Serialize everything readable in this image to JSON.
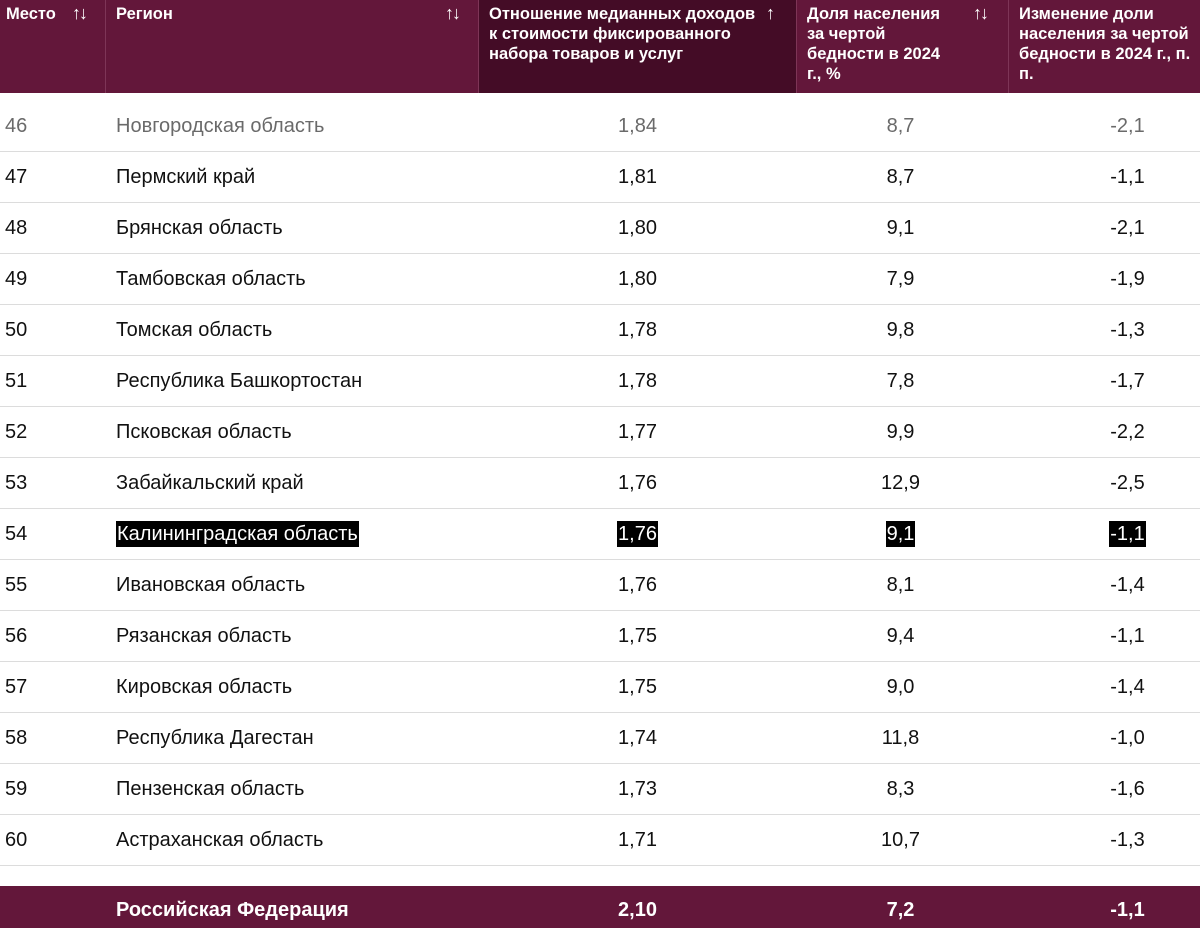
{
  "header": {
    "rank": "Место",
    "region": "Регион",
    "ratio": "Отношение медианных доходов к стоимости фиксированного набора товаров и услуг",
    "share": "Доля населения за чертой бедности в 2024 г., %",
    "change": "Изменение доли населения за чертой бедности в 2024 г., п. п.",
    "sort_both_icon": "↑↓",
    "sort_asc_icon": "↑"
  },
  "rows": [
    {
      "rank": "46",
      "region": "Новгородская область",
      "ratio": "1,84",
      "share": "8,7",
      "change": "-2,1"
    },
    {
      "rank": "47",
      "region": "Пермский край",
      "ratio": "1,81",
      "share": "8,7",
      "change": "-1,1"
    },
    {
      "rank": "48",
      "region": "Брянская область",
      "ratio": "1,80",
      "share": "9,1",
      "change": "-2,1"
    },
    {
      "rank": "49",
      "region": "Тамбовская область",
      "ratio": "1,80",
      "share": "7,9",
      "change": "-1,9"
    },
    {
      "rank": "50",
      "region": "Томская область",
      "ratio": "1,78",
      "share": "9,8",
      "change": "-1,3"
    },
    {
      "rank": "51",
      "region": "Республика Башкортостан",
      "ratio": "1,78",
      "share": "7,8",
      "change": "-1,7"
    },
    {
      "rank": "52",
      "region": "Псковская область",
      "ratio": "1,77",
      "share": "9,9",
      "change": "-2,2"
    },
    {
      "rank": "53",
      "region": "Забайкальский край",
      "ratio": "1,76",
      "share": "12,9",
      "change": "-2,5"
    },
    {
      "rank": "54",
      "region": "Калининградская область",
      "ratio": "1,76",
      "share": "9,1",
      "change": "-1,1"
    },
    {
      "rank": "55",
      "region": "Ивановская область",
      "ratio": "1,76",
      "share": "8,1",
      "change": "-1,4"
    },
    {
      "rank": "56",
      "region": "Рязанская область",
      "ratio": "1,75",
      "share": "9,4",
      "change": "-1,1"
    },
    {
      "rank": "57",
      "region": "Кировская область",
      "ratio": "1,75",
      "share": "9,0",
      "change": "-1,4"
    },
    {
      "rank": "58",
      "region": "Республика Дагестан",
      "ratio": "1,74",
      "share": "11,8",
      "change": "-1,0"
    },
    {
      "rank": "59",
      "region": "Пензенская область",
      "ratio": "1,73",
      "share": "8,3",
      "change": "-1,6"
    },
    {
      "rank": "60",
      "region": "Астраханская область",
      "ratio": "1,71",
      "share": "10,7",
      "change": "-1,3"
    }
  ],
  "footer": {
    "region": "Российская Федерация",
    "ratio": "2,10",
    "share": "7,2",
    "change": "-1,1"
  },
  "colors": {
    "header_bg": "#63173a",
    "active_header_bg": "#440c26",
    "highlight_bg": "#000000"
  }
}
